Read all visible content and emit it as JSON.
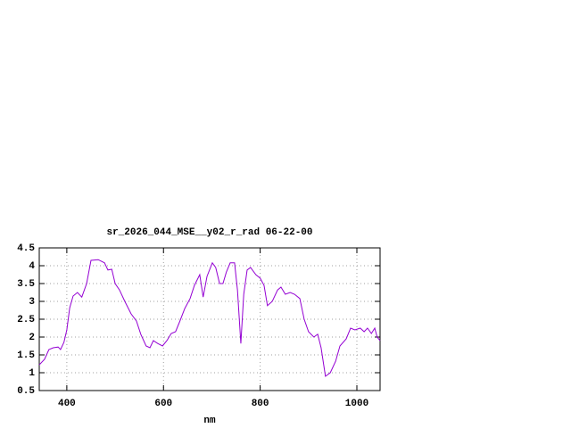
{
  "chart_data": {
    "type": "line",
    "title": "sr_2026_044_MSE__y02_r_rad 06-22-00",
    "x_label": "nm",
    "x": [
      343,
      354,
      363,
      372,
      382,
      387,
      394,
      400,
      406,
      413,
      422,
      431,
      441,
      450,
      465,
      478,
      485,
      493,
      500,
      509,
      520,
      533,
      544,
      553,
      564,
      572,
      579,
      588,
      598,
      607,
      616,
      625,
      634,
      644,
      655,
      664,
      675,
      682,
      690,
      701,
      708,
      716,
      723,
      730,
      738,
      747,
      753,
      760,
      766,
      773,
      780,
      791,
      800,
      808,
      815,
      825,
      836,
      843,
      852,
      862,
      871,
      882,
      891,
      900,
      911,
      919,
      926,
      935,
      945,
      956,
      965,
      978,
      987,
      996,
      1007,
      1015,
      1022,
      1030,
      1037,
      1042,
      1048
    ],
    "series": [
      {
        "name": "sr_2026_044_MSE__y02_r_rad",
        "color": "#9400d3",
        "values": [
          1.22,
          1.38,
          1.65,
          1.7,
          1.72,
          1.65,
          1.85,
          2.2,
          2.82,
          3.15,
          3.25,
          3.12,
          3.5,
          4.15,
          4.17,
          4.08,
          3.88,
          3.9,
          3.5,
          3.32,
          3.0,
          2.65,
          2.45,
          2.08,
          1.75,
          1.7,
          1.9,
          1.82,
          1.75,
          1.9,
          2.1,
          2.15,
          2.45,
          2.8,
          3.08,
          3.45,
          3.75,
          3.12,
          3.7,
          4.08,
          3.95,
          3.5,
          3.5,
          3.82,
          4.08,
          4.08,
          3.32,
          1.82,
          3.2,
          3.88,
          3.95,
          3.75,
          3.65,
          3.45,
          2.88,
          3.0,
          3.32,
          3.4,
          3.2,
          3.25,
          3.2,
          3.08,
          2.5,
          2.15,
          2.0,
          2.08,
          1.7,
          0.9,
          1.0,
          1.32,
          1.75,
          1.95,
          2.25,
          2.2,
          2.25,
          2.15,
          2.25,
          2.1,
          2.25,
          2.0,
          1.9
        ]
      }
    ],
    "xlim": [
      343,
      1048
    ],
    "ylim": [
      0.5,
      4.5
    ],
    "xticks": [
      400,
      600,
      800,
      1000
    ],
    "yticks": [
      0.5,
      1,
      1.5,
      2,
      2.5,
      3,
      3.5,
      4,
      4.5
    ],
    "grid": true
  }
}
